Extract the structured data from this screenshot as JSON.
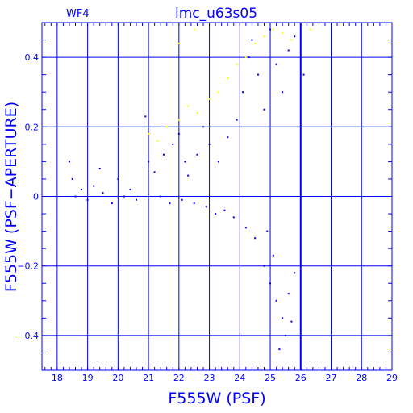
{
  "colors": {
    "axes": "#0000ff",
    "points": "#0000ff",
    "highlight_points": "#ffff00"
  },
  "chart_data": {
    "type": "scatter",
    "title": "lmc_u63s05",
    "panel_label": "WF4",
    "xlabel": "F555W (PSF)",
    "ylabel": "F555W (PSF−APERTURE)",
    "xlim": [
      17.5,
      29
    ],
    "ylim": [
      -0.5,
      0.5
    ],
    "x_ticks": [
      18,
      19,
      20,
      21,
      22,
      23,
      24,
      25,
      26,
      27,
      28,
      29
    ],
    "y_ticks": [
      -0.4,
      -0.2,
      0,
      0.2,
      0.4
    ],
    "x_tick_labels": [
      "18",
      "19",
      "20",
      "21",
      "22",
      "23",
      "24",
      "25",
      "26",
      "27",
      "28",
      "29"
    ],
    "y_tick_labels": [
      "−0.4",
      "−0.2",
      "0",
      "0.2",
      "0.4"
    ],
    "grid": true,
    "vertical_marker_x": 26.0,
    "series": [
      {
        "color": "#0000ff",
        "points": [
          [
            18.4,
            0.1
          ],
          [
            18.5,
            0.05
          ],
          [
            18.6,
            0.0
          ],
          [
            18.8,
            0.02
          ],
          [
            19.0,
            -0.01
          ],
          [
            19.2,
            0.03
          ],
          [
            19.4,
            0.08
          ],
          [
            19.5,
            0.01
          ],
          [
            19.8,
            -0.02
          ],
          [
            20.0,
            0.05
          ],
          [
            20.2,
            0.0
          ],
          [
            20.4,
            0.02
          ],
          [
            20.6,
            -0.01
          ],
          [
            20.9,
            0.23
          ],
          [
            21.0,
            0.1
          ],
          [
            21.2,
            0.07
          ],
          [
            21.5,
            0.12
          ],
          [
            21.8,
            0.15
          ],
          [
            22.0,
            0.18
          ],
          [
            22.2,
            0.1
          ],
          [
            22.3,
            0.06
          ],
          [
            22.6,
            0.12
          ],
          [
            22.8,
            0.2
          ],
          [
            23.0,
            0.15
          ],
          [
            23.3,
            0.1
          ],
          [
            23.6,
            0.17
          ],
          [
            23.9,
            0.22
          ],
          [
            24.1,
            0.3
          ],
          [
            24.3,
            0.4
          ],
          [
            24.4,
            0.45
          ],
          [
            24.6,
            0.35
          ],
          [
            24.8,
            0.25
          ],
          [
            25.0,
            0.48
          ],
          [
            25.2,
            0.38
          ],
          [
            25.4,
            0.3
          ],
          [
            25.6,
            0.42
          ],
          [
            25.8,
            0.46
          ],
          [
            26.0,
            0.2
          ],
          [
            26.1,
            0.35
          ],
          [
            24.5,
            -0.12
          ],
          [
            24.8,
            -0.2
          ],
          [
            25.0,
            -0.25
          ],
          [
            25.2,
            -0.3
          ],
          [
            25.4,
            -0.35
          ],
          [
            25.5,
            -0.4
          ],
          [
            25.6,
            -0.28
          ],
          [
            25.8,
            -0.22
          ],
          [
            25.7,
            -0.36
          ],
          [
            25.3,
            -0.44
          ],
          [
            25.1,
            -0.17
          ],
          [
            24.9,
            -0.1
          ],
          [
            24.2,
            -0.09
          ],
          [
            23.8,
            -0.06
          ],
          [
            23.5,
            -0.04
          ],
          [
            23.2,
            -0.05
          ],
          [
            22.9,
            -0.03
          ],
          [
            22.5,
            -0.02
          ],
          [
            22.1,
            -0.01
          ],
          [
            21.7,
            -0.02
          ],
          [
            21.4,
            0.0
          ]
        ]
      },
      {
        "color": "#ffff00",
        "points": [
          [
            21.0,
            0.18
          ],
          [
            21.3,
            0.16
          ],
          [
            21.6,
            0.2
          ],
          [
            22.0,
            0.22
          ],
          [
            22.3,
            0.26
          ],
          [
            22.6,
            0.24
          ],
          [
            23.0,
            0.28
          ],
          [
            23.3,
            0.3
          ],
          [
            23.6,
            0.34
          ],
          [
            23.9,
            0.38
          ],
          [
            24.2,
            0.4
          ],
          [
            24.5,
            0.44
          ],
          [
            24.8,
            0.46
          ],
          [
            25.1,
            0.48
          ],
          [
            25.4,
            0.47
          ],
          [
            25.7,
            0.45
          ],
          [
            26.0,
            0.49
          ],
          [
            26.3,
            0.48
          ],
          [
            22.0,
            0.44
          ],
          [
            22.5,
            0.48
          ]
        ]
      }
    ]
  }
}
